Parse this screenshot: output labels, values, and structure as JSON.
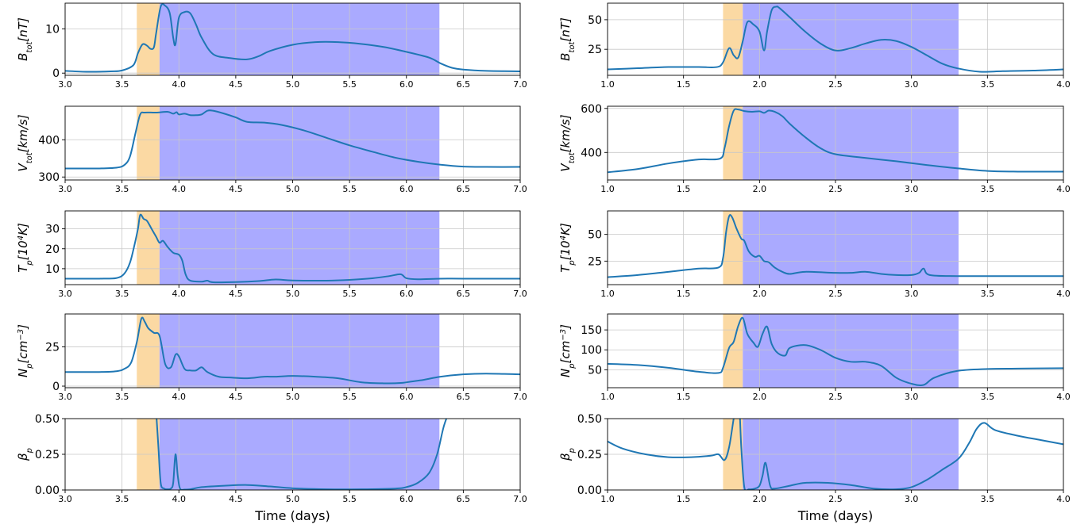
{
  "colors": {
    "line": "#1f77b4",
    "sheath": "#fbd9a3",
    "cloud": "#aaaaff",
    "grid": "#c8c8c8"
  },
  "chart_data": [
    {
      "type": "line",
      "name": "left-btot",
      "ylabel_html": "B<tspan font-size='10' baseline-shift='sub'>tot</tspan>[nT]",
      "xlim": [
        3.0,
        7.0
      ],
      "ylim": [
        -0.5,
        15.8
      ],
      "xticks": [
        "3.0",
        "3.5",
        "4.0",
        "4.5",
        "5.0",
        "5.5",
        "6.0",
        "6.5",
        "7.0"
      ],
      "yticks": [
        0,
        10
      ],
      "ytick_labels": [
        "0",
        "10"
      ],
      "shade": [
        [
          3.63,
          3.83,
          "sheath"
        ],
        [
          3.83,
          6.29,
          "cloud"
        ]
      ],
      "x": [
        3.0,
        3.2,
        3.4,
        3.5,
        3.6,
        3.64,
        3.68,
        3.72,
        3.75,
        3.78,
        3.8,
        3.84,
        3.88,
        3.92,
        3.95,
        3.97,
        4.0,
        4.05,
        4.1,
        4.15,
        4.2,
        4.3,
        4.45,
        4.6,
        4.7,
        4.8,
        5.0,
        5.2,
        5.4,
        5.6,
        5.8,
        6.0,
        6.2,
        6.3,
        6.4,
        6.5,
        6.7,
        7.0
      ],
      "y": [
        0.5,
        0.3,
        0.4,
        0.6,
        1.8,
        4.5,
        6.5,
        6.2,
        5.5,
        5.8,
        9.0,
        15.0,
        15.2,
        13.5,
        8.0,
        6.5,
        12.5,
        13.8,
        13.5,
        11.0,
        8.0,
        4.3,
        3.4,
        3.1,
        3.8,
        5.0,
        6.4,
        7.0,
        7.0,
        6.6,
        5.9,
        4.8,
        3.5,
        2.2,
        1.2,
        0.8,
        0.5,
        0.4
      ]
    },
    {
      "type": "line",
      "name": "left-vtot",
      "ylabel_html": "V<tspan font-size='10' baseline-shift='sub'>tot</tspan>[km/s]",
      "xlim": [
        3.0,
        7.0
      ],
      "ylim": [
        292,
        490
      ],
      "xticks": [
        "3.0",
        "3.5",
        "4.0",
        "4.5",
        "5.0",
        "5.5",
        "6.0",
        "6.5",
        "7.0"
      ],
      "yticks": [
        300,
        400
      ],
      "ytick_labels": [
        "300",
        "400"
      ],
      "shade": [
        [
          3.63,
          3.83,
          "sheath"
        ],
        [
          3.83,
          6.29,
          "cloud"
        ]
      ],
      "x": [
        3.0,
        3.3,
        3.45,
        3.52,
        3.57,
        3.62,
        3.66,
        3.7,
        3.8,
        3.9,
        3.95,
        3.98,
        4.0,
        4.05,
        4.1,
        4.15,
        4.2,
        4.25,
        4.3,
        4.4,
        4.5,
        4.6,
        4.75,
        4.9,
        5.1,
        5.3,
        5.5,
        5.7,
        5.9,
        6.1,
        6.3,
        6.5,
        6.7,
        7.0
      ],
      "y": [
        323,
        323,
        325,
        332,
        355,
        420,
        468,
        473,
        473,
        475,
        470,
        474,
        468,
        470,
        466,
        466,
        468,
        478,
        478,
        470,
        460,
        448,
        446,
        440,
        425,
        405,
        385,
        368,
        352,
        341,
        333,
        328,
        327,
        327
      ]
    },
    {
      "type": "line",
      "name": "left-tp",
      "ylabel_html": "T<tspan font-size='10' baseline-shift='sub'>p</tspan>[10<tspan font-size='10' baseline-shift='super'>4</tspan>K]",
      "xlim": [
        3.0,
        7.0
      ],
      "ylim": [
        2,
        39
      ],
      "xticks": [
        "3.0",
        "3.5",
        "4.0",
        "4.5",
        "5.0",
        "5.5",
        "6.0",
        "6.5",
        "7.0"
      ],
      "yticks": [
        10,
        20,
        30
      ],
      "ytick_labels": [
        "10",
        "20",
        "30"
      ],
      "shade": [
        [
          3.63,
          3.83,
          "sheath"
        ],
        [
          3.83,
          6.29,
          "cloud"
        ]
      ],
      "x": [
        3.0,
        3.3,
        3.45,
        3.52,
        3.57,
        3.61,
        3.64,
        3.66,
        3.69,
        3.72,
        3.76,
        3.8,
        3.83,
        3.86,
        3.9,
        3.95,
        4.0,
        4.03,
        4.06,
        4.1,
        4.2,
        4.25,
        4.3,
        4.5,
        4.7,
        4.85,
        5.0,
        5.3,
        5.5,
        5.7,
        5.85,
        5.95,
        6.0,
        6.1,
        6.3,
        6.5,
        7.0
      ],
      "y": [
        5,
        5,
        5.3,
        7.5,
        13,
        22,
        30,
        37,
        35,
        34,
        30,
        26,
        23,
        24,
        21,
        18,
        17,
        14,
        7,
        4,
        3.5,
        4,
        3.2,
        3.3,
        3.8,
        4.6,
        4.1,
        4.0,
        4.4,
        5.2,
        6.3,
        7.2,
        5.2,
        4.7,
        5,
        5,
        5
      ]
    },
    {
      "type": "line",
      "name": "left-np",
      "ylabel_html": "N<tspan font-size='10' baseline-shift='sub'>p</tspan>[cm<tspan font-size='10' baseline-shift='super'>−3</tspan>]",
      "xlim": [
        3.0,
        7.0
      ],
      "ylim": [
        -1,
        46
      ],
      "xticks": [
        "3.0",
        "3.5",
        "4.0",
        "4.5",
        "5.0",
        "5.5",
        "6.0",
        "6.5",
        "7.0"
      ],
      "yticks": [
        0,
        25
      ],
      "ytick_labels": [
        "0",
        "25"
      ],
      "shade": [
        [
          3.63,
          3.83,
          "sheath"
        ],
        [
          3.83,
          6.29,
          "cloud"
        ]
      ],
      "x": [
        3.0,
        3.3,
        3.45,
        3.52,
        3.58,
        3.63,
        3.67,
        3.7,
        3.73,
        3.78,
        3.83,
        3.88,
        3.93,
        3.97,
        4.0,
        4.05,
        4.1,
        4.15,
        4.2,
        4.25,
        4.35,
        4.45,
        4.6,
        4.75,
        4.85,
        5.0,
        5.2,
        5.4,
        5.6,
        5.8,
        5.95,
        6.05,
        6.15,
        6.3,
        6.5,
        6.7,
        7.0
      ],
      "y": [
        9,
        9,
        9.5,
        11,
        15,
        28,
        43,
        41,
        37,
        34,
        32,
        14,
        12,
        20,
        19,
        11,
        10,
        10,
        12,
        9,
        6,
        5.5,
        5,
        6,
        6,
        6.5,
        6,
        5,
        2.5,
        1.8,
        2,
        3,
        4,
        6,
        7.5,
        8,
        7.5
      ]
    },
    {
      "type": "line",
      "name": "left-beta",
      "ylabel_html": "β<tspan font-size='10' baseline-shift='sub'>p</tspan>",
      "xlim": [
        3.0,
        7.0
      ],
      "ylim": [
        0,
        0.5
      ],
      "xticks": [
        "3.0",
        "3.5",
        "4.0",
        "4.5",
        "5.0",
        "5.5",
        "6.0",
        "6.5",
        "7.0"
      ],
      "xlabel": "Time (days)",
      "yticks": [
        0,
        0.25,
        0.5
      ],
      "ytick_labels": [
        "0.00",
        "0.25",
        "0.50"
      ],
      "shade": [
        [
          3.63,
          3.83,
          "sheath"
        ],
        [
          3.83,
          6.29,
          "cloud"
        ]
      ],
      "x": [
        3.8,
        3.82,
        3.84,
        3.87,
        3.9,
        3.93,
        3.95,
        3.97,
        3.99,
        4.01,
        4.05,
        4.1,
        4.2,
        4.4,
        4.6,
        4.8,
        5.0,
        5.3,
        5.6,
        5.9,
        6.0,
        6.1,
        6.2,
        6.27,
        6.33,
        6.4
      ],
      "y": [
        0.55,
        0.3,
        0.05,
        0.01,
        0.005,
        0.01,
        0.05,
        0.25,
        0.1,
        0.01,
        0.003,
        0.005,
        0.02,
        0.03,
        0.035,
        0.025,
        0.012,
        0.005,
        0.005,
        0.01,
        0.02,
        0.05,
        0.12,
        0.25,
        0.45,
        0.6
      ]
    },
    {
      "type": "line",
      "name": "right-btot",
      "ylabel_html": "B<tspan font-size='10' baseline-shift='sub'>tot</tspan>[nT]",
      "xlim": [
        1.0,
        4.0
      ],
      "ylim": [
        3,
        64
      ],
      "xticks": [
        "1.0",
        "1.5",
        "2.0",
        "2.5",
        "3.0",
        "3.5",
        "4.0"
      ],
      "yticks": [
        25,
        50
      ],
      "ytick_labels": [
        "25",
        "50"
      ],
      "shade": [
        [
          1.76,
          1.89,
          "sheath"
        ],
        [
          1.89,
          3.31,
          "cloud"
        ]
      ],
      "x": [
        1.0,
        1.2,
        1.4,
        1.6,
        1.72,
        1.76,
        1.8,
        1.83,
        1.86,
        1.89,
        1.92,
        1.96,
        2.0,
        2.03,
        2.05,
        2.08,
        2.11,
        2.13,
        2.2,
        2.3,
        2.4,
        2.5,
        2.6,
        2.7,
        2.8,
        2.9,
        3.0,
        3.1,
        3.2,
        3.3,
        3.45,
        3.6,
        3.8,
        4.0
      ],
      "y": [
        8,
        9,
        10,
        10,
        10,
        14,
        26,
        20,
        18,
        32,
        48,
        46,
        40,
        24,
        40,
        58,
        61,
        60,
        52,
        40,
        30,
        24,
        26,
        30,
        33,
        32,
        27,
        20,
        13,
        9,
        6,
        6.5,
        7,
        8
      ]
    },
    {
      "type": "line",
      "name": "right-vtot",
      "ylabel_html": "V<tspan font-size='10' baseline-shift='sub'>tot</tspan>[km/s]",
      "xlim": [
        1.0,
        4.0
      ],
      "ylim": [
        275,
        610
      ],
      "xticks": [
        "1.0",
        "1.5",
        "2.0",
        "2.5",
        "3.0",
        "3.5",
        "4.0"
      ],
      "yticks": [
        400,
        600
      ],
      "ytick_labels": [
        "400",
        "600"
      ],
      "shade": [
        [
          1.76,
          1.89,
          "sheath"
        ],
        [
          1.89,
          3.31,
          "cloud"
        ]
      ],
      "x": [
        1.0,
        1.2,
        1.4,
        1.6,
        1.74,
        1.77,
        1.8,
        1.83,
        1.86,
        1.9,
        1.95,
        2.0,
        2.03,
        2.06,
        2.1,
        2.15,
        2.2,
        2.3,
        2.4,
        2.5,
        2.7,
        2.9,
        3.1,
        3.3,
        3.5,
        3.7,
        4.0
      ],
      "y": [
        310,
        325,
        350,
        368,
        372,
        420,
        520,
        590,
        595,
        588,
        585,
        587,
        580,
        590,
        585,
        565,
        530,
        470,
        420,
        392,
        375,
        360,
        343,
        328,
        316,
        313,
        313
      ]
    },
    {
      "type": "line",
      "name": "right-tp",
      "ylabel_html": "T<tspan font-size='10' baseline-shift='sub'>p</tspan>[10<tspan font-size='10' baseline-shift='super'>4</tspan>K]",
      "xlim": [
        1.0,
        4.0
      ],
      "ylim": [
        3,
        72
      ],
      "xticks": [
        "1.0",
        "1.5",
        "2.0",
        "2.5",
        "3.0",
        "3.5",
        "4.0"
      ],
      "yticks": [
        25,
        50
      ],
      "ytick_labels": [
        "25",
        "50"
      ],
      "shade": [
        [
          1.76,
          1.89,
          "sheath"
        ],
        [
          1.89,
          3.31,
          "cloud"
        ]
      ],
      "x": [
        1.0,
        1.2,
        1.4,
        1.6,
        1.73,
        1.76,
        1.78,
        1.8,
        1.82,
        1.85,
        1.88,
        1.9,
        1.93,
        1.97,
        2.0,
        2.03,
        2.06,
        2.1,
        2.15,
        2.2,
        2.3,
        2.5,
        2.6,
        2.7,
        2.8,
        2.9,
        3.0,
        3.05,
        3.08,
        3.12,
        3.3,
        3.5,
        3.7,
        4.0
      ],
      "y": [
        10,
        12,
        15,
        18,
        19,
        28,
        52,
        67,
        66,
        55,
        46,
        44,
        34,
        29,
        30,
        25,
        24,
        19,
        15,
        13,
        15,
        14,
        14,
        15,
        13,
        12,
        12,
        14,
        18,
        12,
        11,
        11,
        11,
        11
      ]
    },
    {
      "type": "line",
      "name": "right-np",
      "ylabel_html": "N<tspan font-size='10' baseline-shift='sub'>p</tspan>[cm<tspan font-size='10' baseline-shift='super'>−3</tspan>]",
      "xlim": [
        1.0,
        4.0
      ],
      "ylim": [
        5,
        190
      ],
      "xticks": [
        "1.0",
        "1.5",
        "2.0",
        "2.5",
        "3.0",
        "3.5",
        "4.0"
      ],
      "yticks": [
        50,
        100,
        150
      ],
      "ytick_labels": [
        "50",
        "100",
        "150"
      ],
      "shade": [
        [
          1.76,
          1.89,
          "sheath"
        ],
        [
          1.89,
          3.31,
          "cloud"
        ]
      ],
      "x": [
        1.0,
        1.2,
        1.4,
        1.6,
        1.73,
        1.76,
        1.8,
        1.83,
        1.86,
        1.89,
        1.92,
        1.96,
        1.99,
        2.02,
        2.05,
        2.08,
        2.12,
        2.17,
        2.2,
        2.3,
        2.4,
        2.5,
        2.6,
        2.7,
        2.8,
        2.9,
        3.0,
        3.08,
        3.15,
        3.3,
        3.5,
        3.7,
        4.0
      ],
      "y": [
        65,
        62,
        55,
        45,
        42,
        55,
        105,
        120,
        160,
        180,
        140,
        118,
        108,
        140,
        158,
        115,
        92,
        86,
        105,
        112,
        100,
        80,
        70,
        70,
        60,
        30,
        15,
        12,
        30,
        47,
        52,
        53,
        54
      ]
    },
    {
      "type": "line",
      "name": "right-beta",
      "ylabel_html": "β<tspan font-size='10' baseline-shift='sub'>p</tspan>",
      "xlim": [
        1.0,
        4.0
      ],
      "ylim": [
        0,
        0.5
      ],
      "xticks": [
        "1.0",
        "1.5",
        "2.0",
        "2.5",
        "3.0",
        "3.5",
        "4.0"
      ],
      "xlabel": "Time (days)",
      "yticks": [
        0,
        0.25,
        0.5
      ],
      "ytick_labels": [
        "0.00",
        "0.25",
        "0.50"
      ],
      "shade": [
        [
          1.76,
          1.89,
          "sheath"
        ],
        [
          1.89,
          3.31,
          "cloud"
        ]
      ],
      "x": [
        1.0,
        1.1,
        1.25,
        1.4,
        1.55,
        1.68,
        1.73,
        1.77,
        1.8,
        1.83,
        1.86,
        1.88,
        1.9,
        1.93,
        1.97,
        2.0,
        2.02,
        2.04,
        2.07,
        2.1,
        2.2,
        2.3,
        2.45,
        2.6,
        2.75,
        2.9,
        3.0,
        3.1,
        3.2,
        3.31,
        3.38,
        3.43,
        3.48,
        3.55,
        3.7,
        3.85,
        4.0
      ],
      "y": [
        0.34,
        0.29,
        0.25,
        0.23,
        0.23,
        0.24,
        0.25,
        0.21,
        0.3,
        0.5,
        0.7,
        0.3,
        0.02,
        0.005,
        0.01,
        0.03,
        0.1,
        0.19,
        0.03,
        0.01,
        0.03,
        0.05,
        0.05,
        0.035,
        0.01,
        0.005,
        0.02,
        0.07,
        0.14,
        0.22,
        0.33,
        0.43,
        0.47,
        0.42,
        0.38,
        0.35,
        0.32
      ]
    }
  ]
}
